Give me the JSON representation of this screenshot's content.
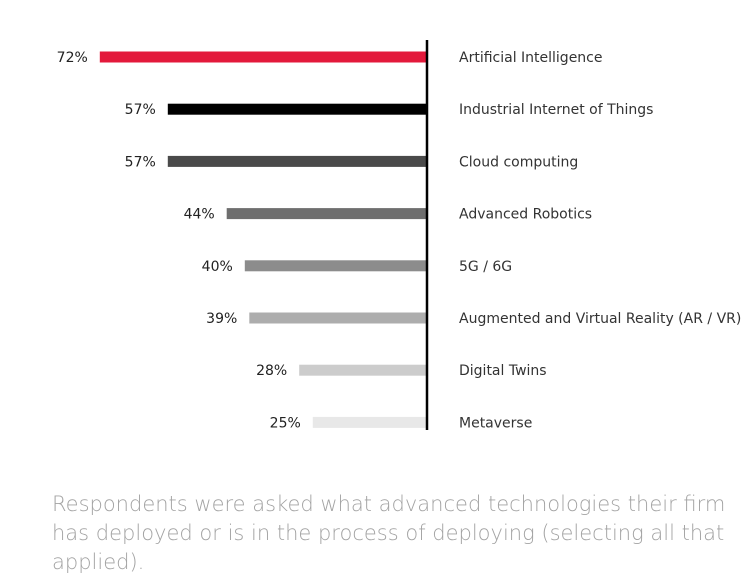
{
  "chart_data": {
    "type": "bar",
    "orientation": "horizontal",
    "direction": "right-to-left",
    "title": "",
    "xlabel": "",
    "ylabel": "",
    "xlim": [
      0,
      100
    ],
    "grid": false,
    "legend": "none",
    "value_suffix": "%",
    "categories": [
      "Artificial Intelligence",
      "Industrial Internet of Things",
      "Cloud computing",
      "Advanced Robotics",
      "5G / 6G",
      "Augmented and Virtual Reality (AR / VR)",
      "Digital Twins",
      "Metaverse"
    ],
    "values": [
      72,
      57,
      57,
      44,
      40,
      39,
      28,
      25
    ],
    "value_labels": [
      "72%",
      "57%",
      "57%",
      "44%",
      "40%",
      "39%",
      "28%",
      "25%"
    ],
    "bar_colors": [
      "#e3193b",
      "#000000",
      "#4a4a4a",
      "#6e6e6e",
      "#8c8c8c",
      "#adadad",
      "#cccccc",
      "#e8e8e8"
    ],
    "axis_color": "#000000"
  },
  "caption": "Respondents were asked what advanced technologies their firm has deployed or is in the process of deploying (selecting all that applied)."
}
